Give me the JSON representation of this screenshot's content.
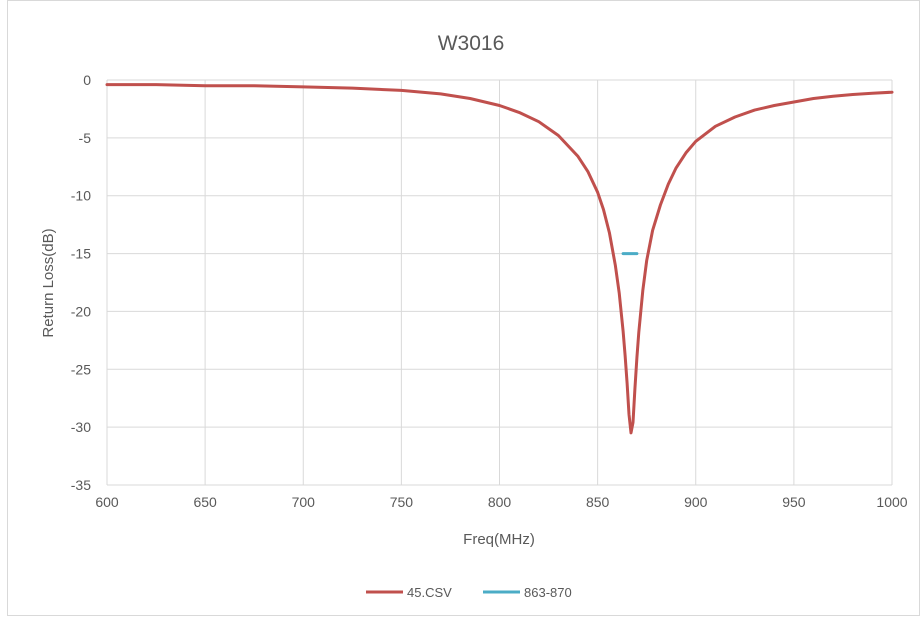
{
  "chart_data": {
    "type": "line",
    "title": "W3016",
    "xlabel": "Freq(MHz)",
    "ylabel": "Return Loss(dB)",
    "xlim": [
      600,
      1000
    ],
    "ylim": [
      -35,
      0
    ],
    "x_ticks": [
      600,
      650,
      700,
      750,
      800,
      850,
      900,
      950,
      1000
    ],
    "y_ticks": [
      0,
      -5,
      -10,
      -15,
      -20,
      -25,
      -30,
      -35
    ],
    "grid": true,
    "legend_position": "bottom",
    "series": [
      {
        "name": "45.CSV",
        "color": "#C0504D",
        "x": [
          600,
          625,
          650,
          675,
          700,
          725,
          750,
          770,
          785,
          800,
          810,
          820,
          830,
          840,
          845,
          850,
          853,
          856,
          859,
          861,
          863,
          864,
          865,
          866,
          867,
          868,
          869,
          870,
          871,
          873,
          875,
          878,
          882,
          886,
          890,
          895,
          900,
          910,
          920,
          930,
          940,
          950,
          960,
          970,
          980,
          990,
          1000
        ],
        "y": [
          -0.4,
          -0.4,
          -0.5,
          -0.5,
          -0.6,
          -0.7,
          -0.9,
          -1.2,
          -1.6,
          -2.2,
          -2.8,
          -3.6,
          -4.8,
          -6.6,
          -7.9,
          -9.7,
          -11.2,
          -13.2,
          -16.0,
          -18.4,
          -21.7,
          -23.8,
          -26.2,
          -28.9,
          -30.5,
          -29.6,
          -26.7,
          -24.0,
          -21.8,
          -18.2,
          -15.6,
          -13.0,
          -10.8,
          -9.0,
          -7.6,
          -6.3,
          -5.3,
          -4.0,
          -3.2,
          -2.6,
          -2.2,
          -1.9,
          -1.6,
          -1.4,
          -1.25,
          -1.15,
          -1.05
        ]
      },
      {
        "name": "863-870",
        "color": "#4BACC6",
        "x": [
          863,
          870
        ],
        "y": [
          -15,
          -15
        ]
      }
    ]
  }
}
